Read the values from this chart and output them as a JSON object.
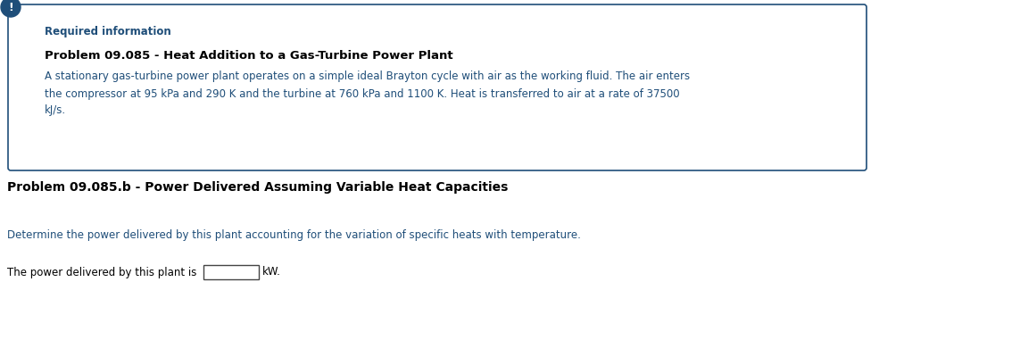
{
  "required_info_label": "Required information",
  "problem_title": "Problem 09.085 - Heat Addition to a Gas-Turbine Power Plant",
  "problem_body": "A stationary gas-turbine power plant operates on a simple ideal Brayton cycle with air as the working fluid. The air enters\nthe compressor at 95 kPa and 290 K and the turbine at 760 kPa and 1100 K. Heat is transferred to air at a rate of 37500\nkJ/s.",
  "sub_problem_title": "Problem 09.085.b - Power Delivered Assuming Variable Heat Capacities",
  "instruction_text": "Determine the power delivered by this plant accounting for the variation of specific heats with temperature.",
  "answer_prefix": "The power delivered by this plant is",
  "answer_suffix": "kW.",
  "box_border_color": "#1f4e79",
  "required_info_color": "#1f4e79",
  "problem_title_color": "#000000",
  "body_text_color": "#1f4e79",
  "sub_title_color": "#000000",
  "instruction_color": "#1f4e79",
  "answer_text_color": "#000000",
  "exclamation_bg": "#1f4e79",
  "exclamation_text": "!",
  "bg_color": "#ffffff",
  "box_fill_color": "#ffffff",
  "fig_width": 11.43,
  "fig_height": 3.81,
  "dpi": 100
}
